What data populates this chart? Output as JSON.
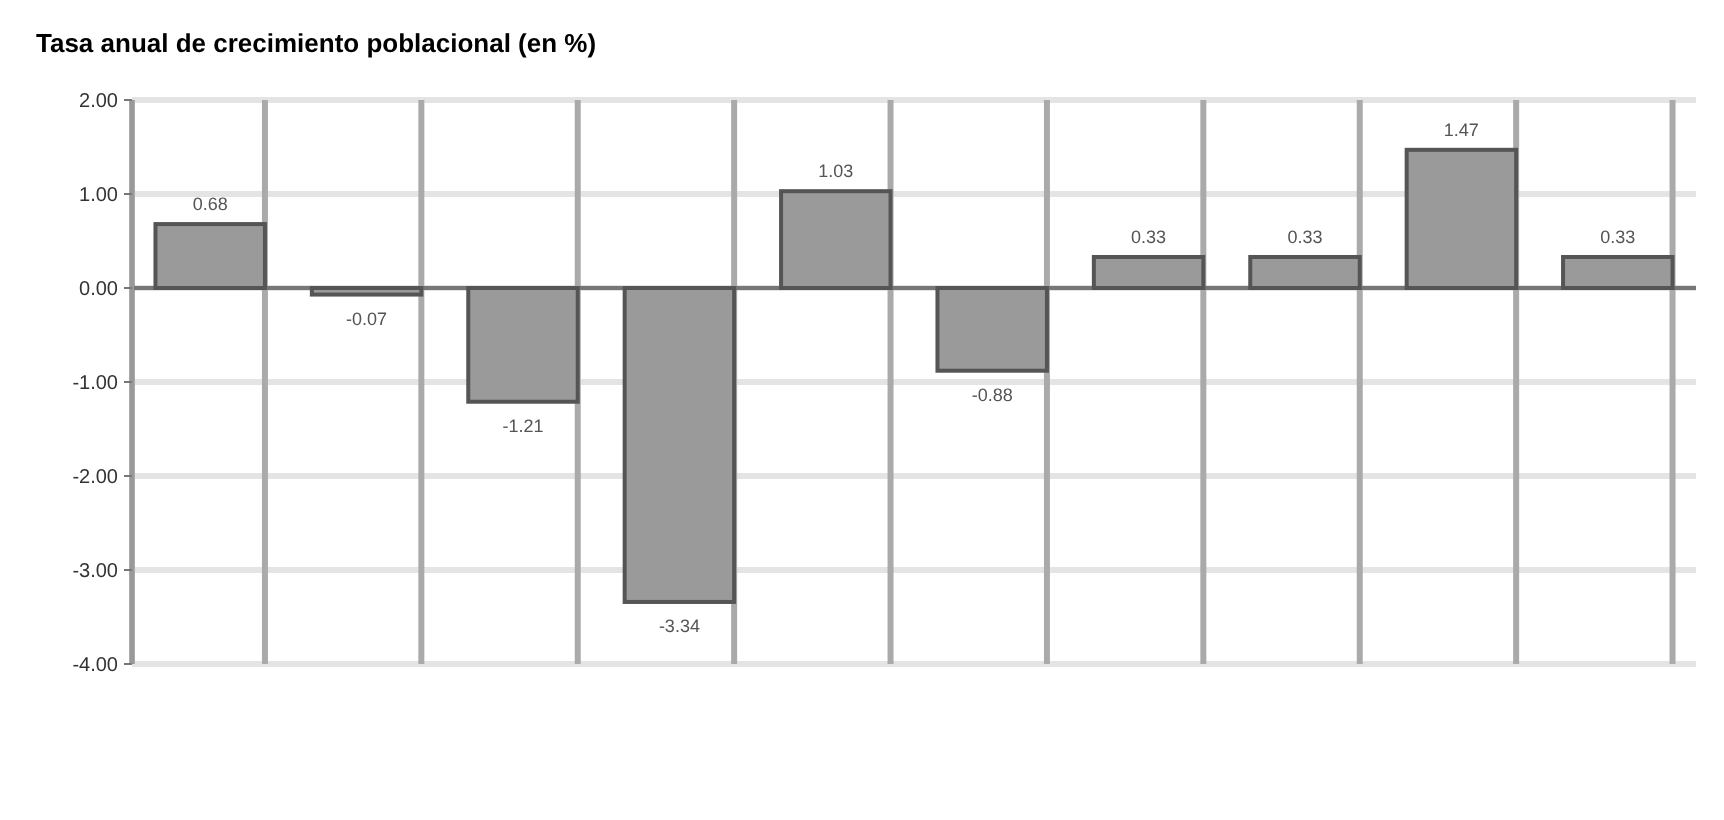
{
  "chart_data": {
    "type": "bar",
    "title": "Tasa anual de crecimiento poblacional (en %)",
    "categories": [
      null,
      null,
      null,
      null,
      null,
      null,
      null,
      null,
      null,
      null
    ],
    "values": [
      0.68,
      -0.07,
      -1.21,
      -3.34,
      1.03,
      -0.88,
      0.33,
      0.33,
      1.47,
      0.33
    ],
    "color": "#9a9a9a",
    "ylim": [
      -4,
      2
    ],
    "yticks": [
      {
        "value": 2,
        "label": "2.00"
      },
      {
        "value": 1,
        "label": "1.00"
      },
      {
        "value": 0,
        "label": "0.00"
      },
      {
        "value": -1,
        "label": "-1.00"
      },
      {
        "value": -2,
        "label": "-2.00"
      },
      {
        "value": -3,
        "label": "-3.00"
      },
      {
        "value": -4,
        "label": "-4.00"
      }
    ],
    "grid": true,
    "data_labels": true
  }
}
